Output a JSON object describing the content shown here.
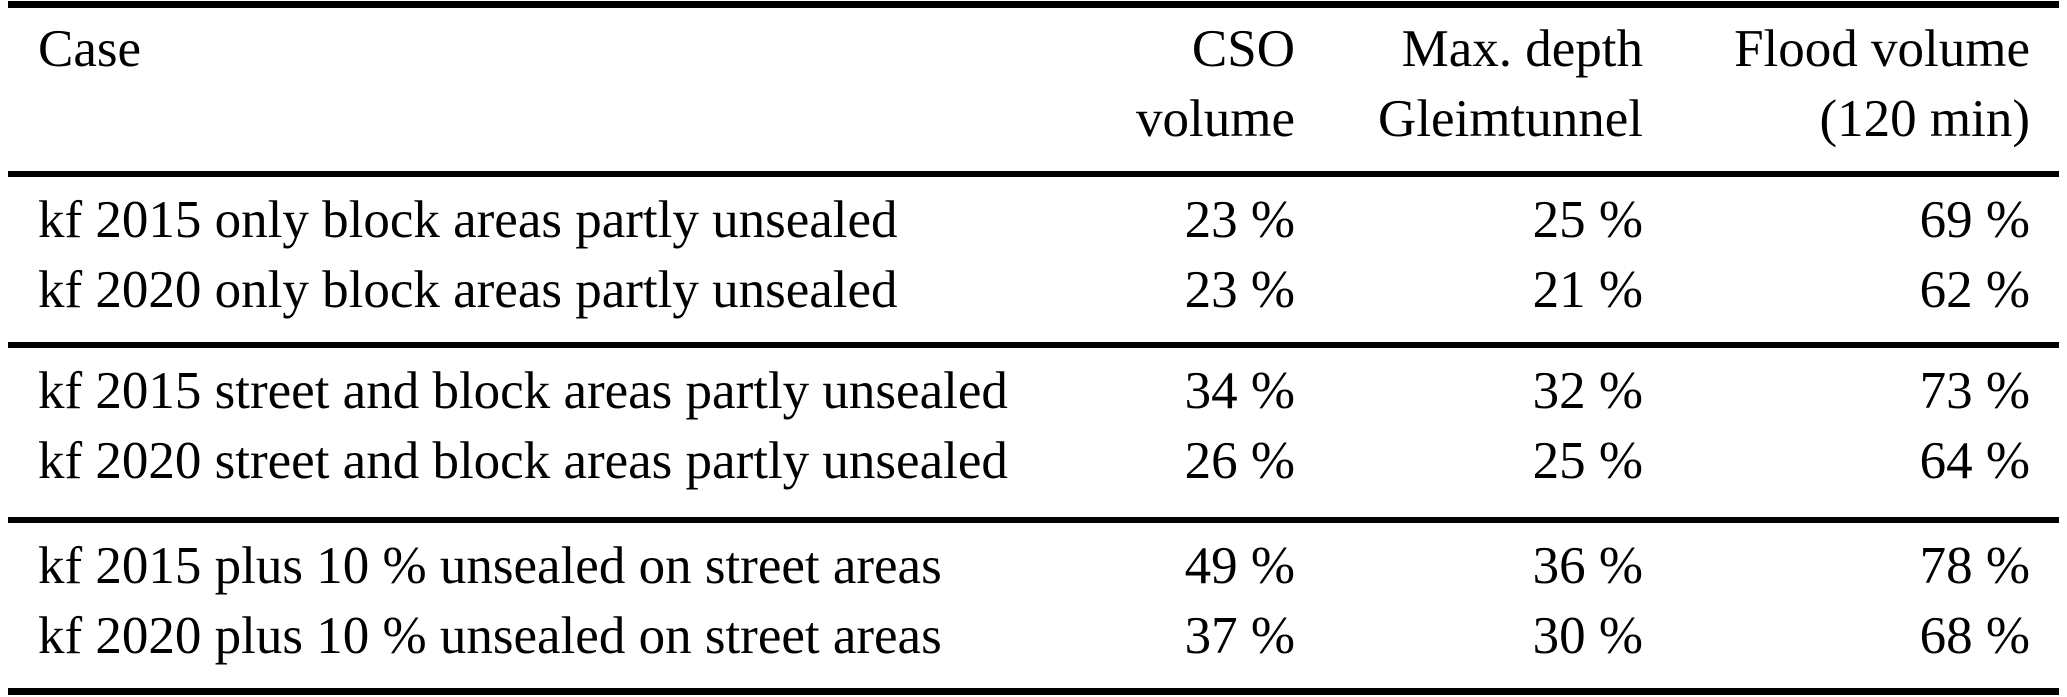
{
  "colors": {
    "background": "#ffffff",
    "text": "#000000",
    "rule": "#000000"
  },
  "table": {
    "columns": [
      {
        "id": "case",
        "line1": "Case",
        "line2": ""
      },
      {
        "id": "cso_volume",
        "line1": "CSO",
        "line2": "volume"
      },
      {
        "id": "max_depth",
        "line1": "Max. depth",
        "line2": "Gleimtunnel"
      },
      {
        "id": "flood_volume",
        "line1": "Flood volume",
        "line2": "(120 min)"
      }
    ],
    "groups": [
      {
        "rows": [
          {
            "case": "kf 2015 only block areas partly unsealed",
            "cso_volume": "23 %",
            "max_depth": "25 %",
            "flood_volume": "69 %"
          },
          {
            "case": "kf 2020 only block areas partly unsealed",
            "cso_volume": "23 %",
            "max_depth": "21 %",
            "flood_volume": "62 %"
          }
        ]
      },
      {
        "rows": [
          {
            "case": "kf 2015 street and block areas partly unsealed",
            "cso_volume": "34 %",
            "max_depth": "32 %",
            "flood_volume": "73 %"
          },
          {
            "case": "kf 2020 street and block areas partly unsealed",
            "cso_volume": "26 %",
            "max_depth": "25 %",
            "flood_volume": "64 %"
          }
        ]
      },
      {
        "rows": [
          {
            "case": "kf 2015 plus 10 % unsealed on street areas",
            "cso_volume": "49 %",
            "max_depth": "36 %",
            "flood_volume": "78 %"
          },
          {
            "case": "kf 2020 plus 10 % unsealed on street areas",
            "cso_volume": "37 %",
            "max_depth": "30 %",
            "flood_volume": "68 %"
          }
        ]
      }
    ]
  }
}
